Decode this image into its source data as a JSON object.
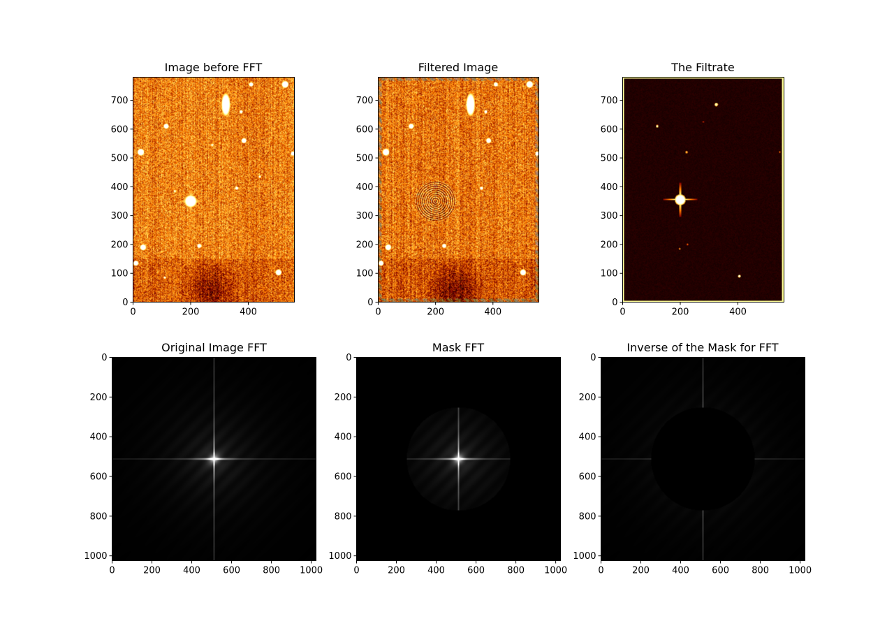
{
  "figure": {
    "background": "#ffffff",
    "rows": 2,
    "cols": 3
  },
  "chart_data": [
    {
      "type": "heatmap",
      "title": "Image before FFT",
      "colormap": "afmhot",
      "xlim": [
        0,
        560
      ],
      "ylim": [
        0,
        780
      ],
      "origin": "lower",
      "xticks": [
        0,
        200,
        400
      ],
      "yticks": [
        0,
        100,
        200,
        300,
        400,
        500,
        600,
        700
      ],
      "content": "star-field",
      "base_level": 0.5,
      "sources": [
        {
          "x": 200,
          "y": 350,
          "r": 14,
          "v": 1.0,
          "spikes": true
        },
        {
          "x": 322,
          "y": 685,
          "rx": 10,
          "ry": 26,
          "v": 1.0
        },
        {
          "x": 27,
          "y": 520,
          "r": 8,
          "v": 1.0
        },
        {
          "x": 115,
          "y": 610,
          "r": 6,
          "v": 1.0
        },
        {
          "x": 35,
          "y": 190,
          "r": 7,
          "v": 1.0
        },
        {
          "x": 10,
          "y": 135,
          "r": 6,
          "v": 1.0
        },
        {
          "x": 505,
          "y": 103,
          "r": 7,
          "v": 1.0
        },
        {
          "x": 528,
          "y": 755,
          "r": 8,
          "v": 1.0
        },
        {
          "x": 385,
          "y": 560,
          "r": 6,
          "v": 1.0
        },
        {
          "x": 230,
          "y": 195,
          "r": 5,
          "v": 1.0
        },
        {
          "x": 360,
          "y": 395,
          "r": 4,
          "v": 0.9
        },
        {
          "x": 410,
          "y": 755,
          "r": 5,
          "v": 1.0
        },
        {
          "x": 555,
          "y": 515,
          "r": 5,
          "v": 1.0
        },
        {
          "x": 375,
          "y": 660,
          "r": 4,
          "v": 0.9
        },
        {
          "x": 440,
          "y": 435,
          "r": 3,
          "v": 0.8
        },
        {
          "x": 110,
          "y": 85,
          "r": 3,
          "v": 0.8
        },
        {
          "x": 275,
          "y": 545,
          "r": 3,
          "v": 0.8
        },
        {
          "x": 145,
          "y": 385,
          "r": 3,
          "v": 0.8
        }
      ]
    },
    {
      "type": "heatmap",
      "title": "Filtered Image",
      "colormap": "afmhot",
      "xlim": [
        0,
        560
      ],
      "ylim": [
        0,
        780
      ],
      "origin": "lower",
      "xticks": [
        0,
        200,
        400
      ],
      "yticks": [
        0,
        100,
        200,
        300,
        400,
        500,
        600,
        700
      ],
      "content": "star-field-highpass",
      "base_level": 0.48,
      "ring_center": [
        200,
        350
      ],
      "sources": [
        {
          "x": 322,
          "y": 685,
          "rx": 10,
          "ry": 26,
          "v": 1.0
        },
        {
          "x": 27,
          "y": 520,
          "r": 8,
          "v": 1.0
        },
        {
          "x": 115,
          "y": 610,
          "r": 6,
          "v": 1.0
        },
        {
          "x": 35,
          "y": 190,
          "r": 7,
          "v": 1.0
        },
        {
          "x": 10,
          "y": 135,
          "r": 6,
          "v": 1.0
        },
        {
          "x": 505,
          "y": 103,
          "r": 7,
          "v": 1.0
        },
        {
          "x": 528,
          "y": 755,
          "r": 8,
          "v": 1.0
        },
        {
          "x": 385,
          "y": 560,
          "r": 6,
          "v": 1.0
        },
        {
          "x": 230,
          "y": 195,
          "r": 5,
          "v": 1.0
        },
        {
          "x": 360,
          "y": 395,
          "r": 4,
          "v": 0.9
        },
        {
          "x": 410,
          "y": 755,
          "r": 5,
          "v": 1.0
        },
        {
          "x": 555,
          "y": 515,
          "r": 5,
          "v": 1.0
        },
        {
          "x": 375,
          "y": 660,
          "r": 4,
          "v": 0.9
        }
      ]
    },
    {
      "type": "heatmap",
      "title": "The Filtrate",
      "colormap": "afmhot",
      "xlim": [
        0,
        560
      ],
      "ylim": [
        0,
        780
      ],
      "origin": "lower",
      "xticks": [
        0,
        200,
        400
      ],
      "yticks": [
        0,
        100,
        200,
        300,
        400,
        500,
        600,
        700
      ],
      "content": "low-pass-residual",
      "base_level": 0.04,
      "sources": [
        {
          "x": 200,
          "y": 355,
          "r": 12,
          "v": 1.0,
          "spikes": true
        },
        {
          "x": 325,
          "y": 685,
          "r": 4,
          "v": 0.7
        },
        {
          "x": 120,
          "y": 610,
          "r": 3,
          "v": 0.7
        },
        {
          "x": 405,
          "y": 90,
          "r": 3,
          "v": 0.8
        },
        {
          "x": 222,
          "y": 520,
          "r": 3,
          "v": 0.5
        },
        {
          "x": 198,
          "y": 185,
          "r": 2,
          "v": 0.5
        },
        {
          "x": 225,
          "y": 200,
          "r": 2,
          "v": 0.4
        },
        {
          "x": 545,
          "y": 520,
          "r": 2,
          "v": 0.4
        },
        {
          "x": 280,
          "y": 625,
          "r": 2,
          "v": 0.3
        }
      ]
    },
    {
      "type": "heatmap",
      "title": "Original Image FFT",
      "colormap": "gray",
      "xlim": [
        0,
        1024
      ],
      "ylim": [
        1024,
        0
      ],
      "origin": "upper",
      "xticks": [
        0,
        200,
        400,
        600,
        800,
        1000
      ],
      "yticks": [
        0,
        200,
        400,
        600,
        800,
        1000
      ],
      "content": "fft-magnitude",
      "center": [
        512,
        512
      ]
    },
    {
      "type": "heatmap",
      "title": "Mask FFT",
      "colormap": "gray",
      "xlim": [
        0,
        1024
      ],
      "ylim": [
        1024,
        0
      ],
      "origin": "upper",
      "xticks": [
        0,
        200,
        400,
        600,
        800,
        1000
      ],
      "yticks": [
        0,
        200,
        400,
        600,
        800,
        1000
      ],
      "content": "fft-inside-circle",
      "center": [
        512,
        512
      ],
      "mask_radius": 260
    },
    {
      "type": "heatmap",
      "title": "Inverse of the Mask for FFT",
      "colormap": "gray",
      "xlim": [
        0,
        1024
      ],
      "ylim": [
        1024,
        0
      ],
      "origin": "upper",
      "xticks": [
        0,
        200,
        400,
        600,
        800,
        1000
      ],
      "yticks": [
        0,
        200,
        400,
        600,
        800,
        1000
      ],
      "content": "fft-outside-circle",
      "center": [
        512,
        512
      ],
      "mask_radius": 260
    }
  ]
}
